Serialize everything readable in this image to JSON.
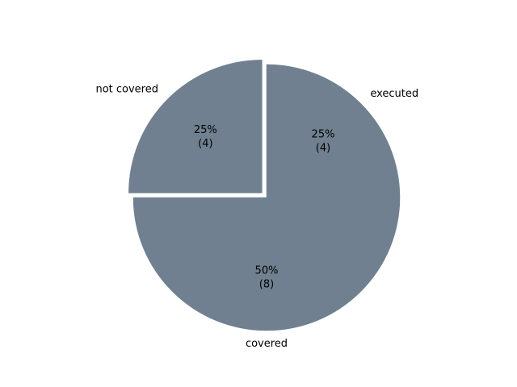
{
  "chart_data": {
    "type": "pie",
    "categories": [
      "executed",
      "covered",
      "not covered"
    ],
    "values": [
      4,
      8,
      4
    ],
    "percent_labels": [
      "25%",
      "50%",
      "25%"
    ],
    "count_labels": [
      "(4)",
      "(8)",
      "(4)"
    ],
    "exploded": [
      false,
      false,
      true
    ],
    "slice_color": "#708090",
    "edge_color": "#ffffff",
    "start_angle_deg": 90,
    "direction": "clockwise",
    "title": ""
  }
}
